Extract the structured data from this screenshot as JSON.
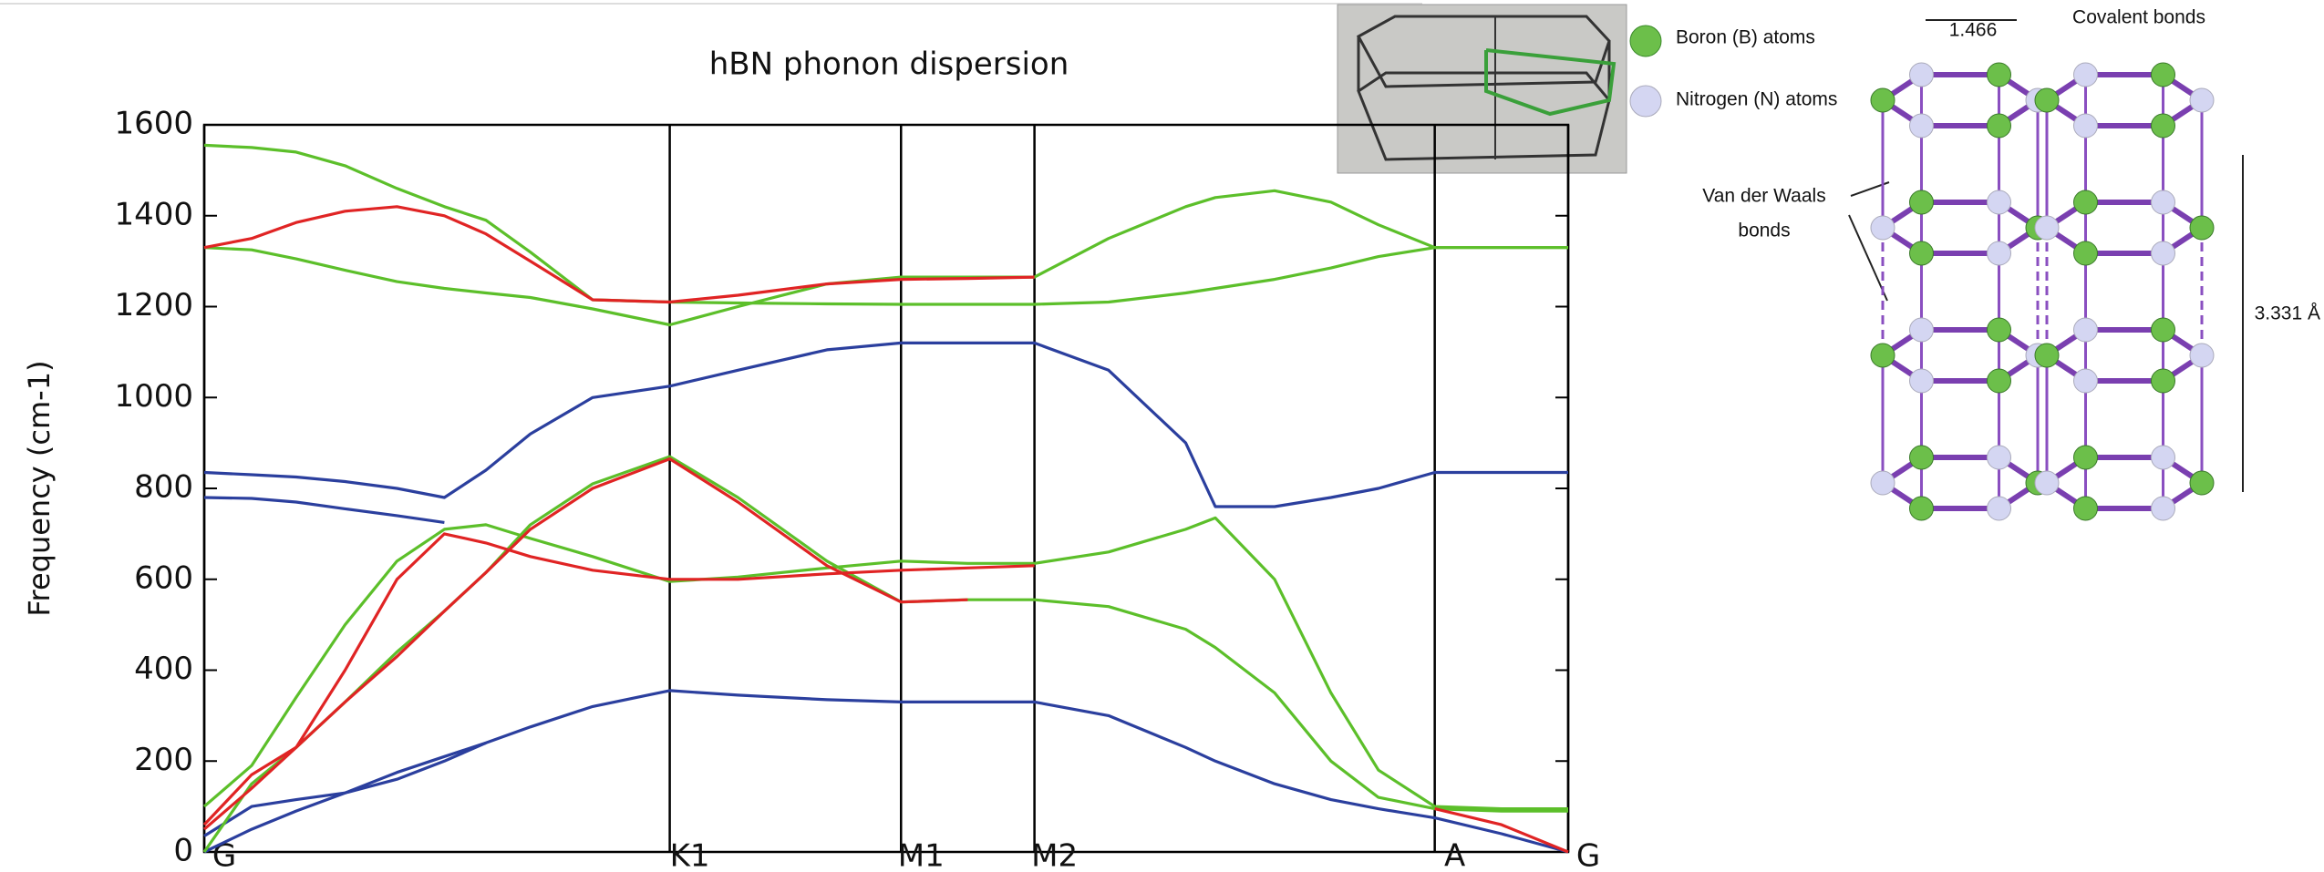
{
  "chart_data": {
    "type": "line",
    "title": "hBN phonon dispersion",
    "ylabel": "Frequency (cm-1)",
    "x": [
      0,
      32,
      62,
      95,
      130,
      162,
      190,
      220,
      262,
      314,
      360,
      420,
      470,
      515,
      560,
      610,
      662,
      682,
      722,
      760,
      792,
      830,
      875,
      920
    ],
    "xlim": [
      0,
      920
    ],
    "xticks": [
      {
        "value": 0,
        "label": "G"
      },
      {
        "value": 314,
        "label": "K1"
      },
      {
        "value": 470,
        "label": "M1"
      },
      {
        "value": 560,
        "label": "M2"
      },
      {
        "value": 830,
        "label": "A"
      },
      {
        "value": 920,
        "label": "G"
      }
    ],
    "ylim": [
      0,
      1600
    ],
    "yticks": [
      0,
      200,
      400,
      600,
      800,
      1000,
      1200,
      1400,
      1600
    ],
    "series": [
      {
        "color": "#2b3f9e",
        "values": [
          0,
          50,
          90,
          130,
          175,
          210,
          240,
          275,
          320,
          355,
          345,
          335,
          330,
          330,
          330,
          300,
          230,
          200,
          150,
          115,
          95,
          75,
          40,
          0
        ]
      },
      {
        "color": "#2b3f9e",
        "values": [
          835,
          830,
          825,
          815,
          800,
          780,
          840,
          920,
          1000,
          1025,
          1060,
          1105,
          1120,
          1120,
          1120,
          1060,
          900,
          760,
          760,
          780,
          800,
          835,
          835,
          835
        ]
      },
      {
        "color": "#2b3f9e",
        "values": [
          780,
          778,
          770,
          755,
          740,
          725,
          null,
          null,
          null,
          null,
          null,
          null,
          null,
          null,
          null,
          null,
          null,
          null,
          null,
          null,
          null,
          null,
          null,
          null
        ]
      },
      {
        "color": "#2b3f9e",
        "values": [
          35,
          100,
          115,
          130,
          160,
          200,
          240,
          null,
          null,
          null,
          null,
          null,
          null,
          null,
          null,
          null,
          null,
          null,
          null,
          null,
          null,
          null,
          null,
          null
        ]
      },
      {
        "color": "#5cbf2a",
        "values": [
          1555,
          1550,
          1540,
          1510,
          1460,
          1420,
          1390,
          1320,
          1215,
          1210,
          1208,
          1206,
          1205,
          1205,
          1205,
          1210,
          1230,
          1240,
          1260,
          1285,
          1310,
          1330,
          1330,
          1330
        ]
      },
      {
        "color": "#5cbf2a",
        "values": [
          1330,
          1325,
          1305,
          1280,
          1255,
          1240,
          1230,
          1220,
          1195,
          1160,
          1200,
          1250,
          1265,
          1265,
          1265,
          1350,
          1420,
          1440,
          1455,
          1430,
          1380,
          1330,
          1330,
          1330
        ]
      },
      {
        "color": "#5cbf2a",
        "values": [
          100,
          190,
          340,
          500,
          640,
          710,
          720,
          690,
          650,
          595,
          605,
          625,
          640,
          635,
          635,
          660,
          710,
          735,
          600,
          350,
          180,
          100,
          95,
          95
        ]
      },
      {
        "color": "#5cbf2a",
        "values": [
          0,
          150,
          230,
          330,
          440,
          530,
          615,
          720,
          810,
          870,
          780,
          640,
          550,
          555,
          555,
          540,
          490,
          450,
          350,
          200,
          120,
          95,
          90,
          90
        ]
      },
      {
        "color": "#e02424",
        "values": [
          1330,
          1350,
          1385,
          1410,
          1420,
          1400,
          1360,
          1300,
          1215,
          1210,
          1225,
          1250,
          1260,
          1262,
          1265,
          null,
          null,
          null,
          null,
          null,
          null,
          null,
          null,
          null
        ]
      },
      {
        "color": "#e02424",
        "values": [
          60,
          170,
          230,
          330,
          430,
          530,
          615,
          710,
          800,
          865,
          770,
          630,
          550,
          555,
          null,
          null,
          null,
          null,
          null,
          null,
          null,
          null,
          null,
          null
        ]
      },
      {
        "color": "#e02424",
        "values": [
          50,
          140,
          230,
          400,
          600,
          700,
          680,
          650,
          620,
          600,
          600,
          612,
          620,
          625,
          630,
          null,
          null,
          null,
          null,
          null,
          null,
          95,
          60,
          0
        ]
      }
    ]
  },
  "figure": {
    "boron_label": "Boron (B) atoms",
    "nitrogen_label": "Nitrogen (N) atoms",
    "vdw_label_1": "Van der Waals",
    "vdw_label_2": "bonds",
    "covalent_label": "Covalent bonds",
    "bond_length": "1.466",
    "layer_spacing": "3.331 Å"
  }
}
